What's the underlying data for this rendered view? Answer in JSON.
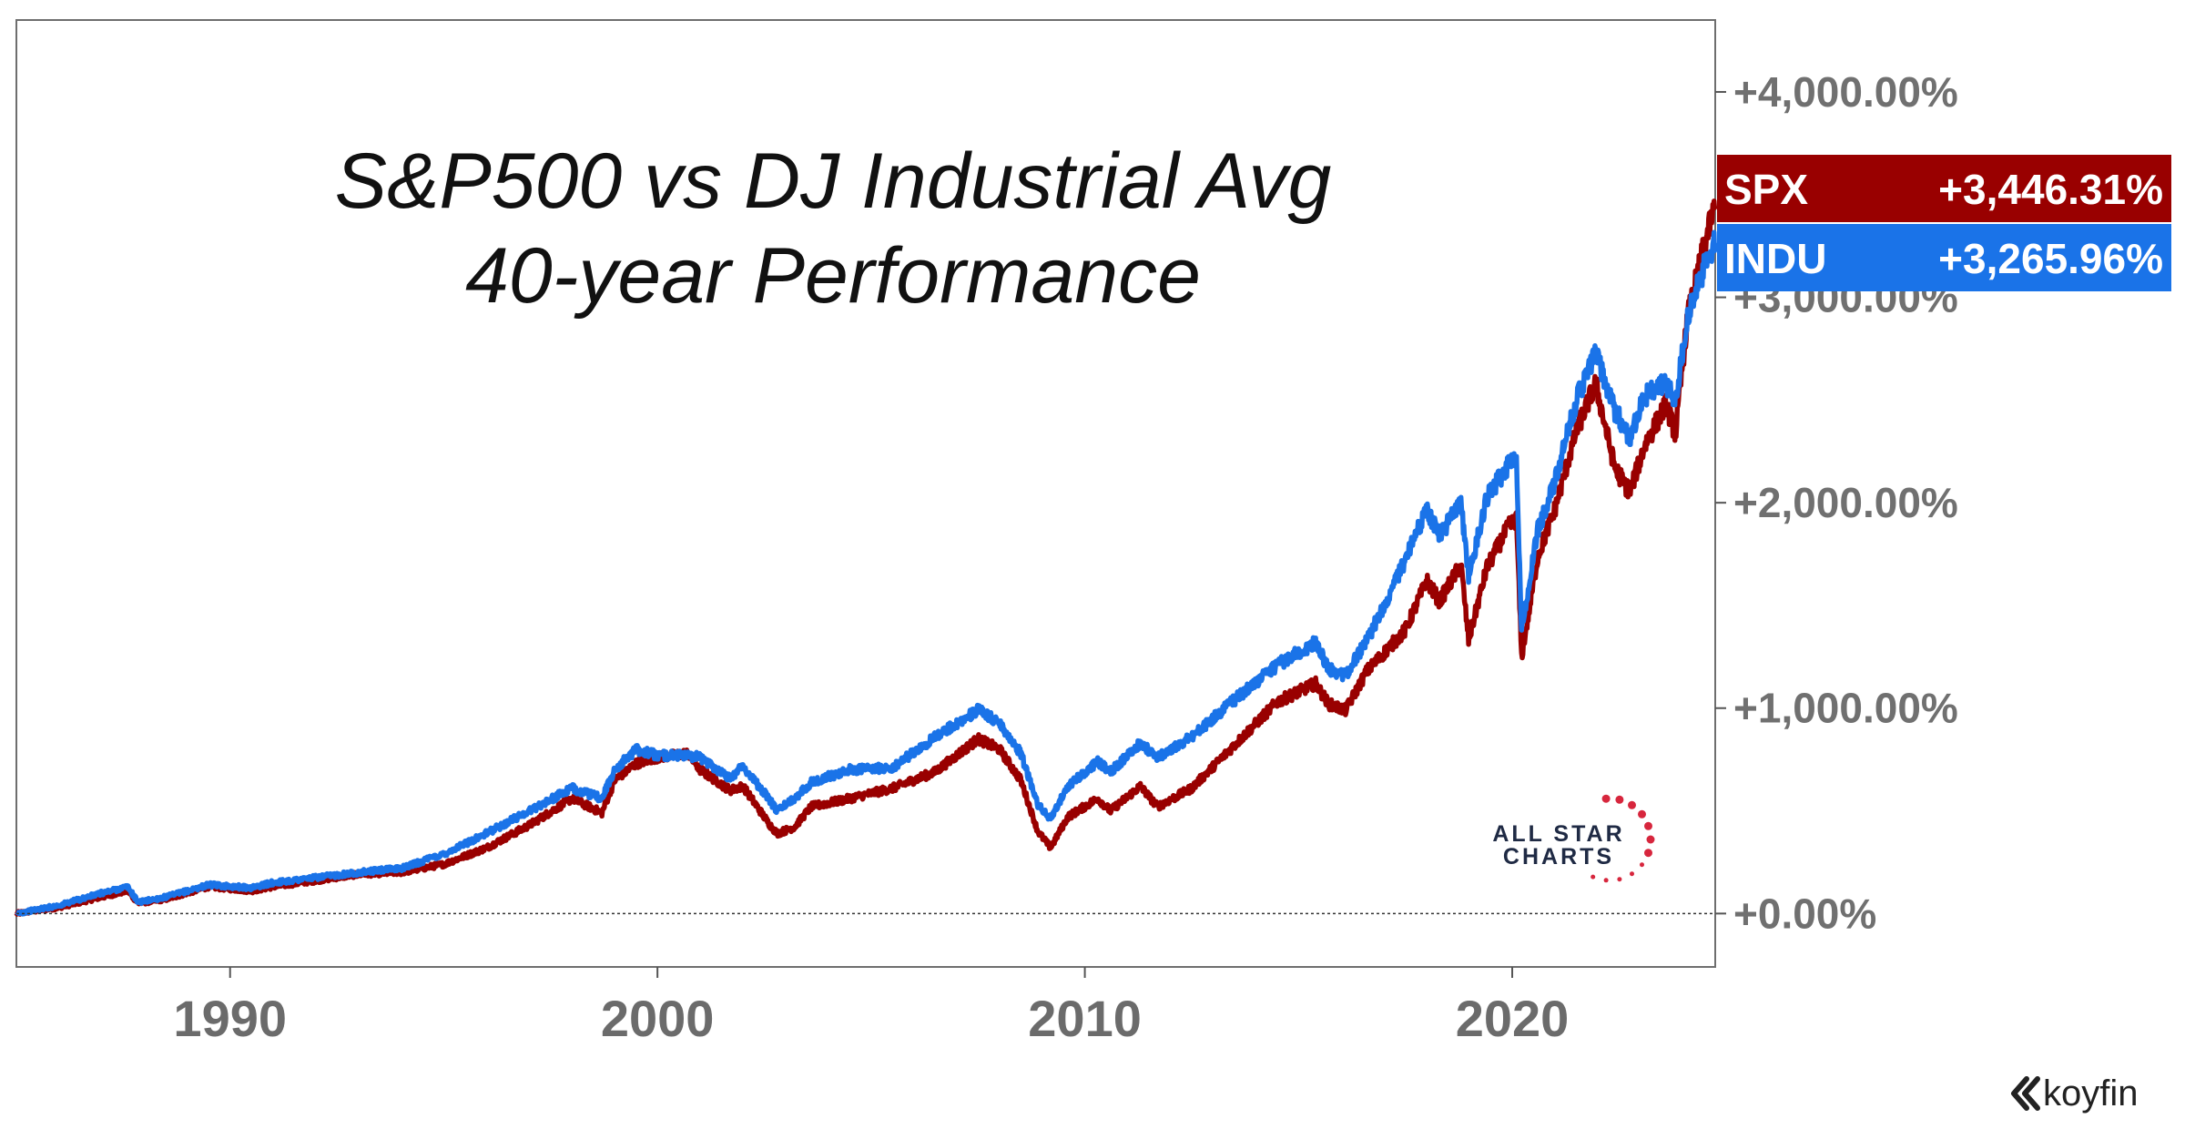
{
  "chart_data": {
    "type": "line",
    "title_lines": [
      "S&P500 vs DJ Industrial Avg",
      "40-year Performance"
    ],
    "x_range": [
      1985.0,
      2024.75
    ],
    "y_range": [
      -260,
      4350
    ],
    "y_ticks": [
      {
        "value": 0,
        "label": "+0.00%"
      },
      {
        "value": 1000,
        "label": "+1,000.00%"
      },
      {
        "value": 2000,
        "label": "+2,000.00%"
      },
      {
        "value": 3000,
        "label": "+3,000.00%"
      },
      {
        "value": 4000,
        "label": "+4,000.00%"
      }
    ],
    "x_ticks": [
      {
        "value": 1990,
        "label": "1990"
      },
      {
        "value": 2000,
        "label": "2000"
      },
      {
        "value": 2010,
        "label": "2010"
      },
      {
        "value": 2020,
        "label": "2020"
      }
    ],
    "baseline": 0,
    "series": [
      {
        "name": "SPX",
        "last_label": "+3,446.31%",
        "color": "#990000",
        "points": [
          [
            1985.0,
            0
          ],
          [
            1986.0,
            30
          ],
          [
            1987.0,
            80
          ],
          [
            1987.6,
            110
          ],
          [
            1987.85,
            50
          ],
          [
            1988.5,
            70
          ],
          [
            1989.5,
            130
          ],
          [
            1990.5,
            110
          ],
          [
            1991.0,
            130
          ],
          [
            1992.0,
            160
          ],
          [
            1993.0,
            190
          ],
          [
            1994.0,
            200
          ],
          [
            1995.0,
            240
          ],
          [
            1996.0,
            320
          ],
          [
            1997.0,
            430
          ],
          [
            1998.0,
            560
          ],
          [
            1998.7,
            490
          ],
          [
            1999.0,
            650
          ],
          [
            1999.5,
            730
          ],
          [
            2000.0,
            760
          ],
          [
            2000.7,
            780
          ],
          [
            2001.0,
            700
          ],
          [
            2001.7,
            600
          ],
          [
            2002.0,
            620
          ],
          [
            2002.6,
            440
          ],
          [
            2002.8,
            390
          ],
          [
            2003.2,
            420
          ],
          [
            2003.6,
            520
          ],
          [
            2004.5,
            560
          ],
          [
            2005.5,
            610
          ],
          [
            2006.5,
            690
          ],
          [
            2007.5,
            850
          ],
          [
            2008.0,
            800
          ],
          [
            2008.5,
            650
          ],
          [
            2008.9,
            400
          ],
          [
            2009.2,
            320
          ],
          [
            2009.6,
            470
          ],
          [
            2010.3,
            560
          ],
          [
            2010.6,
            500
          ],
          [
            2011.3,
            620
          ],
          [
            2011.7,
            520
          ],
          [
            2012.5,
            610
          ],
          [
            2013.5,
            820
          ],
          [
            2014.5,
            1030
          ],
          [
            2015.4,
            1120
          ],
          [
            2015.7,
            1020
          ],
          [
            2016.1,
            990
          ],
          [
            2016.6,
            1180
          ],
          [
            2017.5,
            1380
          ],
          [
            2018.0,
            1620
          ],
          [
            2018.3,
            1520
          ],
          [
            2018.8,
            1700
          ],
          [
            2018.98,
            1330
          ],
          [
            2019.4,
            1680
          ],
          [
            2019.9,
            1880
          ],
          [
            2020.1,
            1920
          ],
          [
            2020.22,
            1250
          ],
          [
            2020.6,
            1740
          ],
          [
            2021.0,
            1970
          ],
          [
            2021.5,
            2350
          ],
          [
            2021.95,
            2580
          ],
          [
            2022.4,
            2170
          ],
          [
            2022.75,
            2050
          ],
          [
            2023.1,
            2280
          ],
          [
            2023.6,
            2480
          ],
          [
            2023.82,
            2330
          ],
          [
            2024.1,
            2900
          ],
          [
            2024.5,
            3260
          ],
          [
            2024.75,
            3446
          ]
        ]
      },
      {
        "name": "INDU",
        "last_label": "+3,265.96%",
        "color": "#1a73e8",
        "points": [
          [
            1985.0,
            0
          ],
          [
            1986.0,
            40
          ],
          [
            1987.0,
            100
          ],
          [
            1987.6,
            130
          ],
          [
            1987.85,
            55
          ],
          [
            1988.5,
            80
          ],
          [
            1989.5,
            140
          ],
          [
            1990.5,
            125
          ],
          [
            1991.0,
            150
          ],
          [
            1992.0,
            175
          ],
          [
            1993.0,
            200
          ],
          [
            1994.0,
            220
          ],
          [
            1995.0,
            290
          ],
          [
            1996.0,
            390
          ],
          [
            1997.0,
            500
          ],
          [
            1998.0,
            610
          ],
          [
            1998.7,
            560
          ],
          [
            1999.0,
            700
          ],
          [
            1999.5,
            800
          ],
          [
            2000.0,
            770
          ],
          [
            2000.7,
            770
          ],
          [
            2001.0,
            760
          ],
          [
            2001.7,
            660
          ],
          [
            2002.0,
            720
          ],
          [
            2002.6,
            560
          ],
          [
            2002.8,
            500
          ],
          [
            2003.2,
            560
          ],
          [
            2003.6,
            640
          ],
          [
            2004.5,
            700
          ],
          [
            2005.5,
            710
          ],
          [
            2006.5,
            860
          ],
          [
            2007.5,
            990
          ],
          [
            2008.0,
            930
          ],
          [
            2008.5,
            780
          ],
          [
            2008.9,
            530
          ],
          [
            2009.2,
            460
          ],
          [
            2009.6,
            620
          ],
          [
            2010.3,
            740
          ],
          [
            2010.6,
            690
          ],
          [
            2011.3,
            830
          ],
          [
            2011.7,
            760
          ],
          [
            2012.5,
            860
          ],
          [
            2013.5,
            1040
          ],
          [
            2014.5,
            1210
          ],
          [
            2015.4,
            1320
          ],
          [
            2015.7,
            1190
          ],
          [
            2016.1,
            1160
          ],
          [
            2016.6,
            1330
          ],
          [
            2017.5,
            1720
          ],
          [
            2018.0,
            1970
          ],
          [
            2018.3,
            1840
          ],
          [
            2018.8,
            2000
          ],
          [
            2018.98,
            1640
          ],
          [
            2019.4,
            2020
          ],
          [
            2019.9,
            2180
          ],
          [
            2020.1,
            2200
          ],
          [
            2020.22,
            1380
          ],
          [
            2020.6,
            1870
          ],
          [
            2021.0,
            2100
          ],
          [
            2021.5,
            2500
          ],
          [
            2021.95,
            2730
          ],
          [
            2022.4,
            2450
          ],
          [
            2022.75,
            2320
          ],
          [
            2023.1,
            2520
          ],
          [
            2023.6,
            2580
          ],
          [
            2023.82,
            2500
          ],
          [
            2024.1,
            2900
          ],
          [
            2024.5,
            3150
          ],
          [
            2024.75,
            3266
          ]
        ]
      }
    ]
  },
  "watermark": {
    "line1": "ALL STAR",
    "line2": "CHARTS",
    "star_color": "#d7263d"
  },
  "brand": {
    "name": "koyfin"
  }
}
